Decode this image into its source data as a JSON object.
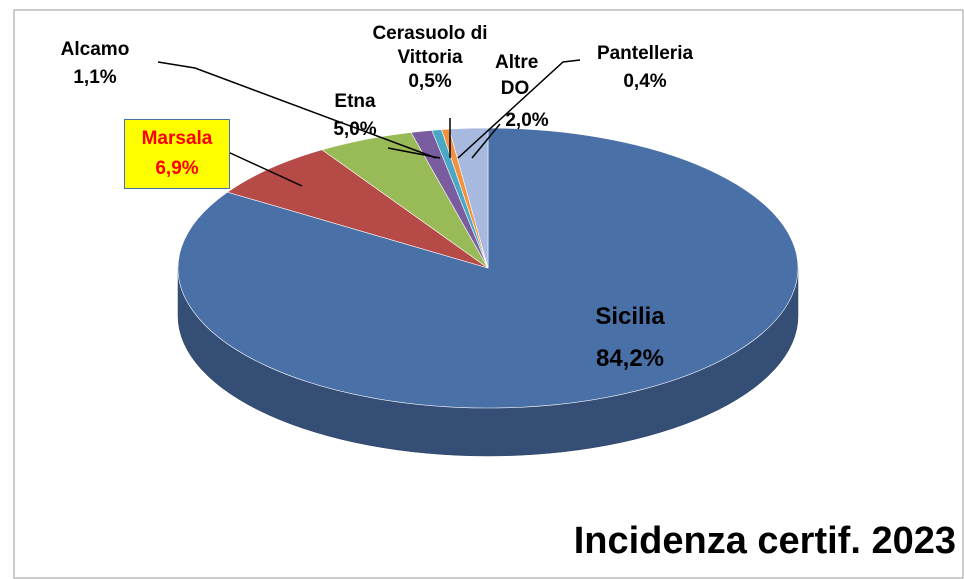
{
  "chart_data": {
    "type": "pie3d",
    "title": "Incidenza certif. 2023",
    "categories": [
      "Sicilia",
      "Marsala",
      "Etna",
      "Alcamo",
      "Cerasuolo di Vittoria",
      "Pantelleria",
      "Altre DO"
    ],
    "values": [
      84.2,
      6.9,
      5.0,
      1.1,
      0.5,
      0.4,
      2.0
    ],
    "value_labels": [
      "84,2%",
      "6,9%",
      "5,0%",
      "1,1%",
      "0,5%",
      "0,4%",
      "2,0%"
    ],
    "colors": [
      "#4a70a8",
      "#b64a47",
      "#98ba57",
      "#7a5d9e",
      "#4aa8c4",
      "#f2913f",
      "#a7b9de"
    ]
  }
}
